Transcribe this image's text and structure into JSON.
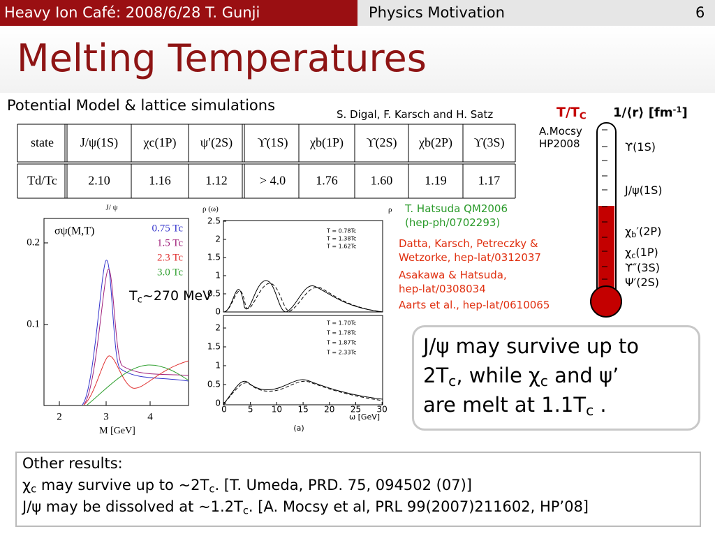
{
  "header": {
    "left": "Heavy Ion Café: 2008/6/28 T. Gunji",
    "section": "Physics Motivation",
    "page": "6"
  },
  "title": "Melting Temperatures",
  "subtitle": "Potential Model & lattice simulations",
  "citation": "S. Digal, F. Karsch and H. Satz",
  "table": {
    "header": [
      "state",
      "J/ψ(1S)",
      "χc(1P)",
      "ψ′(2S)",
      "ϒ(1S)",
      "χb(1P)",
      "ϒ(2S)",
      "χb(2P)",
      "ϒ(3S)"
    ],
    "row": [
      "Td/Tc",
      "2.10",
      "1.16",
      "1.12",
      "> 4.0",
      "1.76",
      "1.60",
      "1.19",
      "1.17"
    ]
  },
  "left_plot": {
    "top_label": "J/ ψ",
    "inner_label": "σψ(M,T)",
    "yticks": [
      "0.2",
      "0.1"
    ],
    "xticks": [
      "2",
      "3",
      "4"
    ],
    "xlabel": "M [GeV]",
    "legend": [
      {
        "name": "0.75 Tc",
        "color": "#3333cc"
      },
      {
        "name": "1.5 Tc",
        "color": "#a0207a"
      },
      {
        "name": "2.3 Tc",
        "color": "#e03030"
      },
      {
        "name": "3.0 Tc",
        "color": "#30a030"
      }
    ],
    "note": [
      "T",
      {
        "sub": "c"
      },
      "~270 MeV"
    ]
  },
  "mid_plot": {
    "ylabel": "ρ (ω)",
    "corner": "ρ",
    "upper_yticks": [
      "2.5",
      "2",
      "1.5",
      "1",
      "0.5",
      "0"
    ],
    "lower_yticks": [
      "2",
      "1.5",
      "1",
      "0.5",
      "0"
    ],
    "xticks": [
      "0",
      "5",
      "10",
      "15",
      "20",
      "25",
      "30"
    ],
    "xlabel": "ω [GeV]",
    "upper_legend": [
      "T = 0.78Tc",
      "T = 1.38Tc",
      "T = 1.62Tc"
    ],
    "lower_legend": [
      "T = 1.70Tc",
      "T = 1.78Tc",
      "T = 1.87Tc",
      "T = 2.33Tc"
    ],
    "caption": "(a)"
  },
  "references": [
    {
      "lines": [
        "T. Hatsuda QM2006",
        " (hep-ph/0702293)"
      ],
      "color": "#2a9a2a"
    },
    {
      "lines": [
        "Datta, Karsch, Petreczky &",
        "Wetzorke, hep-lat/0312037"
      ],
      "color": "#e03010"
    },
    {
      "lines": [
        "Asakawa & Hatsuda,",
        "hep-lat/0308034"
      ],
      "color": "#e03010"
    },
    {
      "lines": [
        "Aarts et al., hep-lat/0610065"
      ],
      "color": "#e03010"
    }
  ],
  "thermometer": {
    "t_label": [
      "T/T",
      {
        "sub": "C"
      }
    ],
    "r_label": [
      "1/⟨r⟩ [fm",
      {
        "sup": "-1"
      },
      "]"
    ],
    "source": [
      "A.Mocsy",
      "HP2008"
    ],
    "states": [
      [
        "ϒ(1S)"
      ],
      [
        "J/ψ(1S)"
      ],
      [
        "χ",
        {
          "sub": "b"
        },
        "′(2P)"
      ],
      [
        "χ",
        {
          "sub": "c"
        },
        "(1P)"
      ],
      [
        "ϒ″(3S)"
      ],
      [
        "Ψ′(2S)"
      ]
    ]
  },
  "conclusion": [
    [
      "J/ψ may survive up to"
    ],
    [
      "2T",
      {
        "sub": "c"
      },
      ", while χ",
      {
        "sub": "c"
      },
      " and ψ’"
    ],
    [
      "are melt at 1.1T",
      {
        "sub": "c"
      },
      " ."
    ]
  ],
  "other_results": [
    [
      "Other results:"
    ],
    [
      "χ",
      {
        "sub": "c"
      },
      " may survive up to ~2T",
      {
        "sub": "c"
      },
      ". [T. Umeda, PRD. 75, 094502 (07)]"
    ],
    [
      "J/ψ may be dissolved at ~1.2T",
      {
        "sub": "c"
      },
      ". [A. Mocsy et al, PRL 99(2007)211602, HP’08]"
    ]
  ]
}
